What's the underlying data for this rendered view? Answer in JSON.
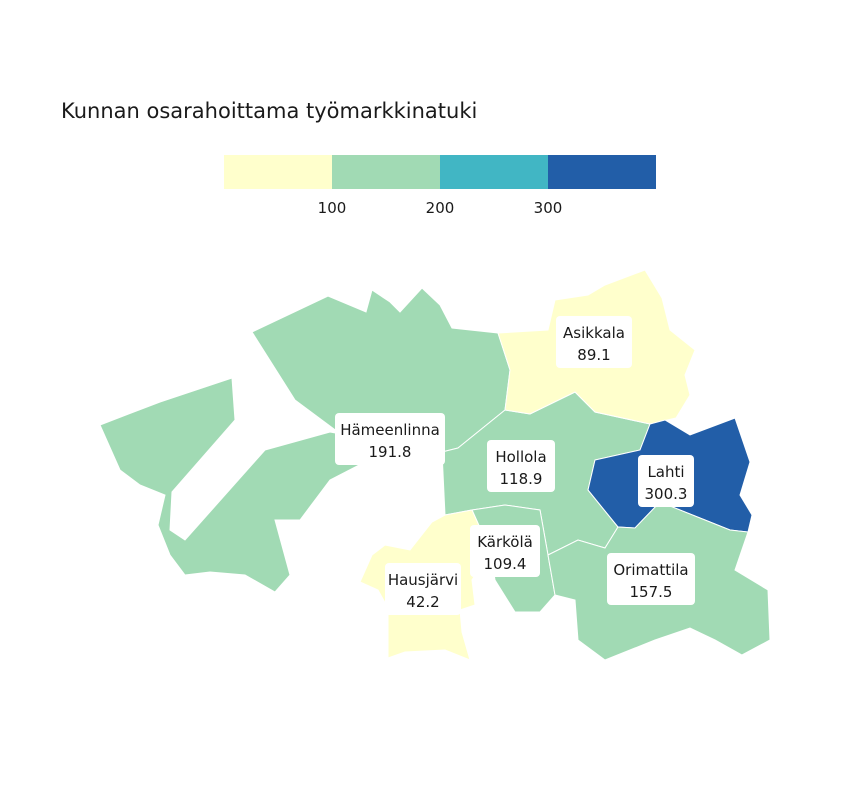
{
  "title": "Kunnan osarahoittama työmarkkinatuki",
  "legend": {
    "colors": [
      "#ffffcc",
      "#a1dab4",
      "#41b6c4",
      "#225ea8"
    ],
    "ticks": [
      "100",
      "200",
      "300"
    ]
  },
  "regions": [
    {
      "name": "Hämeenlinna",
      "value": "191.8",
      "color": "#a1dab4"
    },
    {
      "name": "Asikkala",
      "value": "89.1",
      "color": "#ffffcc"
    },
    {
      "name": "Hollola",
      "value": "118.9",
      "color": "#a1dab4"
    },
    {
      "name": "Lahti",
      "value": "300.3",
      "color": "#225ea8"
    },
    {
      "name": "Kärkölä",
      "value": "109.4",
      "color": "#a1dab4"
    },
    {
      "name": "Orimattila",
      "value": "157.5",
      "color": "#a1dab4"
    },
    {
      "name": "Hausjärvi",
      "value": "42.2",
      "color": "#ffffcc"
    }
  ]
}
